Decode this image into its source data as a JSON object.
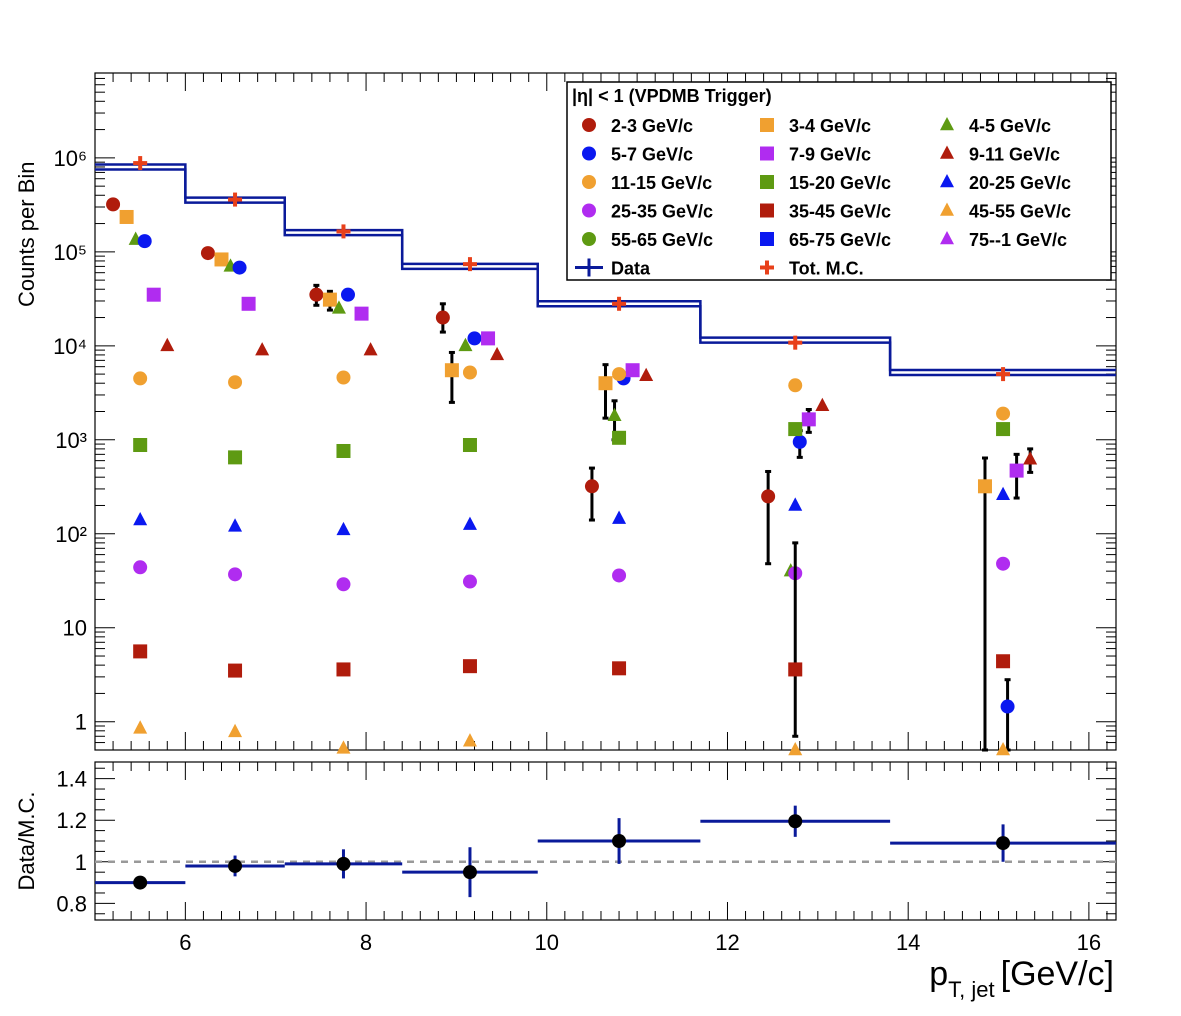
{
  "chart_data": [
    {
      "type": "scatter",
      "panel": "main",
      "ylabel": "Counts per Bin",
      "yscale": "log",
      "xlim": [
        5.0,
        16.3
      ],
      "ylim": [
        0.5,
        8000000
      ],
      "y_ticks": [
        {
          "value": 1,
          "label": "1"
        },
        {
          "value": 10,
          "label": "10"
        },
        {
          "value": 100,
          "label": "10²"
        },
        {
          "value": 1000,
          "label": "10³"
        },
        {
          "value": 10000,
          "label": "10⁴"
        },
        {
          "value": 100000,
          "label": "10⁵"
        },
        {
          "value": 1000000,
          "label": "10⁶"
        }
      ],
      "legend": {
        "title": "|η| < 1 (VPDMB Trigger)",
        "placement": "top-right",
        "entries": [
          {
            "label": "2-3 GeV/c",
            "marker": "circle",
            "color": "#b01c0c"
          },
          {
            "label": "3-4 GeV/c",
            "marker": "square",
            "color": "#f0a030"
          },
          {
            "label": "4-5 GeV/c",
            "marker": "triangle",
            "color": "#5e9a12"
          },
          {
            "label": "5-7 GeV/c",
            "marker": "circle",
            "color": "#0a18f0"
          },
          {
            "label": "7-9 GeV/c",
            "marker": "square",
            "color": "#b02cf0"
          },
          {
            "label": "9-11 GeV/c",
            "marker": "triangle",
            "color": "#b01c0c"
          },
          {
            "label": "11-15 GeV/c",
            "marker": "circle",
            "color": "#f0a030"
          },
          {
            "label": "15-20 GeV/c",
            "marker": "square",
            "color": "#5e9a12"
          },
          {
            "label": "20-25 GeV/c",
            "marker": "triangle",
            "color": "#0a18f0"
          },
          {
            "label": "25-35 GeV/c",
            "marker": "circle",
            "color": "#b02cf0"
          },
          {
            "label": "35-45 GeV/c",
            "marker": "square",
            "color": "#b01c0c"
          },
          {
            "label": "45-55 GeV/c",
            "marker": "triangle",
            "color": "#f0a030"
          },
          {
            "label": "55-65 GeV/c",
            "marker": "circle",
            "color": "#5e9a12"
          },
          {
            "label": "65-75 GeV/c",
            "marker": "square",
            "color": "#0a18f0"
          },
          {
            "label": "75--1 GeV/c",
            "marker": "triangle",
            "color": "#b02cf0"
          },
          {
            "label": "Data",
            "marker": "cross-line",
            "color": "#0a1a9a"
          },
          {
            "label": "Tot. M.C.",
            "marker": "plus",
            "color": "#e8401a"
          }
        ]
      },
      "data_hist": {
        "name": "Data",
        "color": "#0a1a9a",
        "bins": [
          {
            "x_lo": 5.0,
            "x_hi": 6.0,
            "y": 800000
          },
          {
            "x_lo": 6.0,
            "x_hi": 7.1,
            "y": 355000
          },
          {
            "x_lo": 7.1,
            "x_hi": 8.4,
            "y": 160000
          },
          {
            "x_lo": 8.4,
            "x_hi": 9.9,
            "y": 70000
          },
          {
            "x_lo": 9.9,
            "x_hi": 11.7,
            "y": 28000
          },
          {
            "x_lo": 11.7,
            "x_hi": 13.8,
            "y": 11500
          },
          {
            "x_lo": 13.8,
            "x_hi": 16.3,
            "y": 5200
          }
        ]
      },
      "mc_total": {
        "name": "Tot. M.C.",
        "color": "#e8401a",
        "points": [
          {
            "x": 5.5,
            "y": 880000
          },
          {
            "x": 6.55,
            "y": 360000
          },
          {
            "x": 7.75,
            "y": 165000
          },
          {
            "x": 9.15,
            "y": 74000
          },
          {
            "x": 10.8,
            "y": 28000
          },
          {
            "x": 12.75,
            "y": 10800
          },
          {
            "x": 15.05,
            "y": 5000
          }
        ]
      },
      "series": [
        {
          "name": "2-3 GeV/c",
          "marker": "circle",
          "color": "#b01c0c",
          "points": [
            {
              "x": 5.2,
              "y": 320000
            },
            {
              "x": 6.25,
              "y": 97000,
              "err": [
                88000,
                105000
              ]
            },
            {
              "x": 7.45,
              "y": 35000,
              "err": [
                27000,
                44000
              ]
            },
            {
              "x": 8.85,
              "y": 20000,
              "err": [
                14000,
                28000
              ]
            },
            {
              "x": 10.5,
              "y": 320,
              "err": [
                140,
                500
              ]
            },
            {
              "x": 12.45,
              "y": 250,
              "err": [
                48,
                460
              ]
            }
          ]
        },
        {
          "name": "3-4 GeV/c",
          "marker": "square",
          "color": "#f0a030",
          "points": [
            {
              "x": 5.35,
              "y": 235000
            },
            {
              "x": 6.4,
              "y": 83000
            },
            {
              "x": 7.6,
              "y": 31000,
              "err": [
                24000,
                38000
              ]
            },
            {
              "x": 8.95,
              "y": 5500,
              "err": [
                2500,
                8500
              ]
            },
            {
              "x": 10.65,
              "y": 4000,
              "err": [
                1700,
                6300
              ]
            },
            {
              "x": 14.85,
              "y": 320,
              "err": [
                0.5,
                640
              ]
            }
          ]
        },
        {
          "name": "4-5 GeV/c",
          "marker": "triangle",
          "color": "#5e9a12",
          "points": [
            {
              "x": 5.45,
              "y": 135000
            },
            {
              "x": 6.5,
              "y": 70000
            },
            {
              "x": 7.7,
              "y": 25000
            },
            {
              "x": 9.1,
              "y": 10000
            },
            {
              "x": 10.75,
              "y": 1800,
              "err": [
                1000,
                2600
              ]
            },
            {
              "x": 12.7,
              "y": 40
            }
          ]
        },
        {
          "name": "5-7 GeV/c",
          "marker": "circle",
          "color": "#0a18f0",
          "points": [
            {
              "x": 5.55,
              "y": 130000
            },
            {
              "x": 6.6,
              "y": 68000
            },
            {
              "x": 7.8,
              "y": 35000
            },
            {
              "x": 9.2,
              "y": 12000
            },
            {
              "x": 10.85,
              "y": 4500
            },
            {
              "x": 12.8,
              "y": 950,
              "err": [
                650,
                1250
              ]
            },
            {
              "x": 15.1,
              "y": 1.45,
              "err": [
                0.5,
                2.8
              ]
            }
          ]
        },
        {
          "name": "7-9 GeV/c",
          "marker": "square",
          "color": "#b02cf0",
          "points": [
            {
              "x": 5.65,
              "y": 35000
            },
            {
              "x": 6.7,
              "y": 28000
            },
            {
              "x": 7.95,
              "y": 22000
            },
            {
              "x": 9.35,
              "y": 12000
            },
            {
              "x": 10.95,
              "y": 5500
            },
            {
              "x": 12.9,
              "y": 1650,
              "err": [
                1200,
                2100
              ]
            },
            {
              "x": 15.2,
              "y": 470,
              "err": [
                240,
                700
              ]
            }
          ]
        },
        {
          "name": "9-11 GeV/c",
          "marker": "triangle",
          "color": "#b01c0c",
          "points": [
            {
              "x": 5.8,
              "y": 10000
            },
            {
              "x": 6.85,
              "y": 9000
            },
            {
              "x": 8.05,
              "y": 9000
            },
            {
              "x": 9.45,
              "y": 8000
            },
            {
              "x": 11.1,
              "y": 4800
            },
            {
              "x": 13.05,
              "y": 2300
            },
            {
              "x": 15.35,
              "y": 620,
              "err": [
                450,
                800
              ]
            }
          ]
        },
        {
          "name": "11-15 GeV/c",
          "marker": "circle",
          "color": "#f0a030",
          "points": [
            {
              "x": 5.5,
              "y": 4500
            },
            {
              "x": 6.55,
              "y": 4100
            },
            {
              "x": 7.75,
              "y": 4600
            },
            {
              "x": 9.15,
              "y": 5200
            },
            {
              "x": 10.8,
              "y": 5000
            },
            {
              "x": 12.75,
              "y": 3800
            },
            {
              "x": 15.05,
              "y": 1900
            }
          ]
        },
        {
          "name": "15-20 GeV/c",
          "marker": "square",
          "color": "#5e9a12",
          "points": [
            {
              "x": 5.5,
              "y": 880
            },
            {
              "x": 6.55,
              "y": 650
            },
            {
              "x": 7.75,
              "y": 760
            },
            {
              "x": 9.15,
              "y": 880
            },
            {
              "x": 10.8,
              "y": 1050
            },
            {
              "x": 12.75,
              "y": 1300
            },
            {
              "x": 15.05,
              "y": 1300
            }
          ]
        },
        {
          "name": "20-25 GeV/c",
          "marker": "triangle",
          "color": "#0a18f0",
          "points": [
            {
              "x": 5.5,
              "y": 140
            },
            {
              "x": 6.55,
              "y": 120
            },
            {
              "x": 7.75,
              "y": 110
            },
            {
              "x": 9.15,
              "y": 125
            },
            {
              "x": 10.8,
              "y": 145
            },
            {
              "x": 12.75,
              "y": 200
            },
            {
              "x": 15.05,
              "y": 260
            }
          ]
        },
        {
          "name": "25-35 GeV/c",
          "marker": "circle",
          "color": "#b02cf0",
          "points": [
            {
              "x": 5.5,
              "y": 44
            },
            {
              "x": 6.55,
              "y": 37
            },
            {
              "x": 7.75,
              "y": 29
            },
            {
              "x": 9.15,
              "y": 31
            },
            {
              "x": 10.8,
              "y": 36
            },
            {
              "x": 12.75,
              "y": 38
            },
            {
              "x": 15.05,
              "y": 48
            }
          ]
        },
        {
          "name": "35-45 GeV/c",
          "marker": "square",
          "color": "#b01c0c",
          "points": [
            {
              "x": 5.5,
              "y": 5.6
            },
            {
              "x": 6.55,
              "y": 3.5
            },
            {
              "x": 7.75,
              "y": 3.6
            },
            {
              "x": 9.15,
              "y": 3.9
            },
            {
              "x": 10.8,
              "y": 3.7
            },
            {
              "x": 12.75,
              "y": 3.6,
              "err": [
                0.7,
                80
              ]
            },
            {
              "x": 15.05,
              "y": 4.4
            }
          ]
        },
        {
          "name": "45-55 GeV/c",
          "marker": "triangle",
          "color": "#f0a030",
          "points": [
            {
              "x": 5.5,
              "y": 0.85
            },
            {
              "x": 6.55,
              "y": 0.78
            },
            {
              "x": 7.75,
              "y": 0.52
            },
            {
              "x": 9.15,
              "y": 0.62
            },
            {
              "x": 12.75,
              "y": 0.5
            },
            {
              "x": 15.05,
              "y": 0.5
            }
          ]
        },
        {
          "name": "55-65 GeV/c",
          "marker": "circle",
          "color": "#5e9a12",
          "points": []
        },
        {
          "name": "65-75 GeV/c",
          "marker": "square",
          "color": "#0a18f0",
          "points": []
        },
        {
          "name": "75--1 GeV/c",
          "marker": "triangle",
          "color": "#b02cf0",
          "points": []
        }
      ]
    },
    {
      "type": "scatter",
      "panel": "ratio",
      "xlabel": "p_{T, jet} [GeV/c]",
      "xlabel_main": "p",
      "xlabel_sub": "T, jet",
      "xlabel_unit": "[GeV/c]",
      "ylabel": "Data/M.C.",
      "xlim": [
        5.0,
        16.3
      ],
      "ylim": [
        0.72,
        1.48
      ],
      "x_ticks": [
        {
          "value": 6,
          "label": "6"
        },
        {
          "value": 8,
          "label": "8"
        },
        {
          "value": 10,
          "label": "10"
        },
        {
          "value": 12,
          "label": "12"
        },
        {
          "value": 14,
          "label": "14"
        },
        {
          "value": 16,
          "label": "16"
        }
      ],
      "y_ticks": [
        {
          "value": 0.8,
          "label": "0.8"
        },
        {
          "value": 1.0,
          "label": "1"
        },
        {
          "value": 1.2,
          "label": "1.2"
        },
        {
          "value": 1.4,
          "label": "1.4"
        }
      ],
      "reference_line": 1.0,
      "points": [
        {
          "x": 5.5,
          "x_lo": 5.0,
          "x_hi": 6.0,
          "y": 0.9,
          "y_err": 0.02
        },
        {
          "x": 6.55,
          "x_lo": 6.0,
          "x_hi": 7.1,
          "y": 0.98,
          "y_err": 0.05
        },
        {
          "x": 7.75,
          "x_lo": 7.1,
          "x_hi": 8.4,
          "y": 0.99,
          "y_err": 0.07
        },
        {
          "x": 9.15,
          "x_lo": 8.4,
          "x_hi": 9.9,
          "y": 0.95,
          "y_err": 0.12
        },
        {
          "x": 10.8,
          "x_lo": 9.9,
          "x_hi": 11.7,
          "y": 1.1,
          "y_err": 0.11
        },
        {
          "x": 12.75,
          "x_lo": 11.7,
          "x_hi": 13.8,
          "y": 1.195,
          "y_err": 0.075
        },
        {
          "x": 15.05,
          "x_lo": 13.8,
          "x_hi": 16.3,
          "y": 1.09,
          "y_err": 0.09
        }
      ]
    }
  ]
}
